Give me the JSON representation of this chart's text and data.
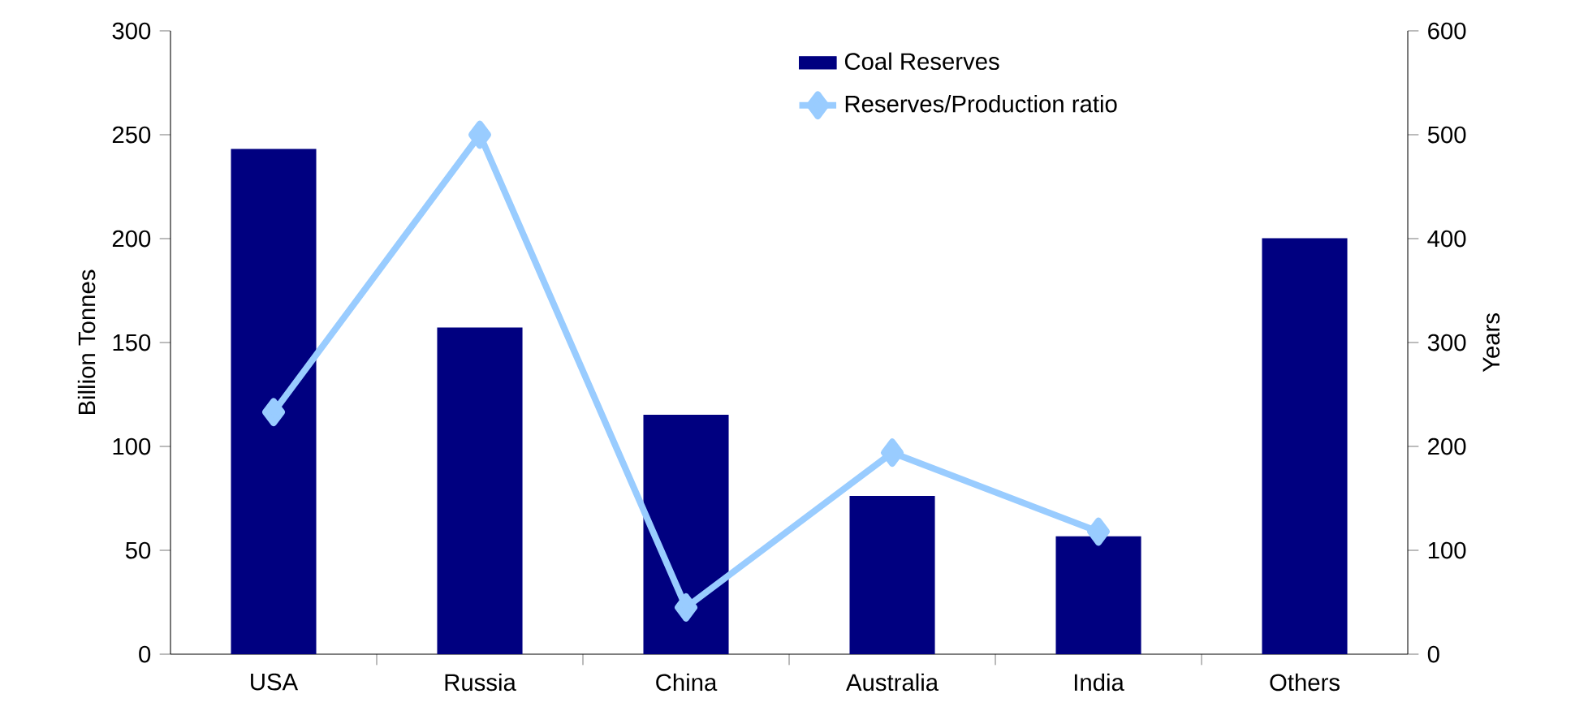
{
  "chart_data": {
    "type": "bar",
    "categories": [
      "USA",
      "Russia",
      "China",
      "Australia",
      "India",
      "Others"
    ],
    "ylabel": "Billion Tonnes",
    "y2label": "Years",
    "ylim": [
      0,
      300
    ],
    "yticks": [
      0,
      50,
      100,
      150,
      200,
      250,
      300
    ],
    "y2lim": [
      0,
      600
    ],
    "y2ticks": [
      0,
      100,
      200,
      300,
      400,
      500,
      600
    ],
    "legend": "top",
    "marker": "diamond",
    "series": [
      {
        "name": "Coal Reserves",
        "color": "#000080",
        "values": [
          243,
          157,
          115,
          76,
          56.5,
          200
        ]
      },
      {
        "name": "Reserves/Production ratio",
        "type": "line",
        "axis": "y2",
        "color": "#99ccff",
        "values": [
          233,
          500,
          45,
          194,
          118,
          null
        ]
      }
    ]
  }
}
